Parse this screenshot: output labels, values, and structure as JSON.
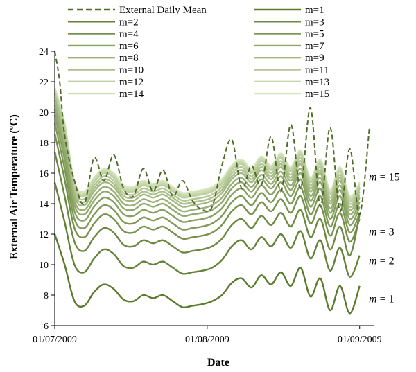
{
  "chart_data": {
    "type": "line",
    "title": "",
    "xlabel": "Date",
    "ylabel": "External Air Temperature (ºC)",
    "ylim": [
      6,
      24
    ],
    "yticks": [
      6,
      8,
      10,
      12,
      14,
      16,
      18,
      20,
      22,
      24
    ],
    "xlim": [
      "01/07/2009",
      "04/09/2009"
    ],
    "xticks": [
      "01/07/2009",
      "01/08/2009",
      "01/09/2009"
    ],
    "grid": false,
    "legend_position": "top",
    "external_mean": {
      "name": "External Daily Mean",
      "style": "dashed",
      "color": "#4f6b28",
      "dates": [
        "01/07/2009",
        "02/07/2009",
        "03/07/2009",
        "05/07/2009",
        "07/07/2009",
        "09/07/2009",
        "11/07/2009",
        "13/07/2009",
        "15/07/2009",
        "17/07/2009",
        "19/07/2009",
        "21/07/2009",
        "23/07/2009",
        "25/07/2009",
        "27/07/2009",
        "29/07/2009",
        "31/07/2009",
        "02/08/2009",
        "04/08/2009",
        "06/08/2009",
        "08/08/2009",
        "10/08/2009",
        "12/08/2009",
        "14/08/2009",
        "16/08/2009",
        "18/08/2009",
        "20/08/2009",
        "22/08/2009",
        "24/08/2009",
        "26/08/2009",
        "28/08/2009",
        "30/08/2009",
        "01/09/2009",
        "03/09/2009"
      ],
      "values": [
        24,
        22,
        18.5,
        15.5,
        14,
        17,
        15.5,
        17.2,
        15,
        14.5,
        16.3,
        14.8,
        16.2,
        14.5,
        15.5,
        14.2,
        13.6,
        13.8,
        16.5,
        18.2,
        15,
        16.5,
        15.2,
        18.4,
        14.8,
        19.2,
        15,
        20.3,
        13.8,
        19,
        13.5,
        17.6,
        13.3,
        19
      ]
    },
    "series": [
      {
        "name": "m=1",
        "values": [
          12.0,
          10.0,
          7.6,
          7.3,
          8.2,
          8.7,
          8.4,
          7.7,
          7.6,
          8.0,
          7.8,
          8.0,
          7.6,
          7.2,
          7.3,
          7.4,
          7.6,
          8.0,
          8.8,
          9.1,
          8.5,
          9.3,
          8.7,
          9.5,
          8.6,
          9.8,
          7.9,
          9.1,
          7.0,
          8.6,
          6.8,
          8.6
        ]
      },
      {
        "name": "m=2",
        "values": [
          15.4,
          12.8,
          10.0,
          9.5,
          10.4,
          11.0,
          10.7,
          9.9,
          9.8,
          10.2,
          10.0,
          10.2,
          9.8,
          9.4,
          9.5,
          9.6,
          9.8,
          10.3,
          11.2,
          11.6,
          11.0,
          11.8,
          11.2,
          12.0,
          11.1,
          12.2,
          10.4,
          11.6,
          9.6,
          11.1,
          9.2,
          10.6
        ]
      },
      {
        "name": "m=3",
        "values": [
          17.4,
          14.5,
          11.5,
          10.9,
          11.8,
          12.4,
          12.1,
          11.3,
          11.2,
          11.6,
          11.4,
          11.6,
          11.2,
          10.8,
          10.9,
          11.0,
          11.2,
          11.7,
          12.6,
          13.0,
          12.4,
          13.2,
          12.6,
          13.4,
          12.5,
          13.6,
          11.8,
          13.0,
          11.0,
          12.5,
          10.6,
          13.3
        ]
      },
      {
        "name": "m=4",
        "values": [
          18.6,
          15.6,
          12.4,
          11.8,
          12.7,
          13.3,
          13.0,
          12.2,
          12.1,
          12.5,
          12.3,
          12.5,
          12.1,
          11.7,
          11.8,
          11.9,
          12.1,
          12.6,
          13.5,
          13.9,
          13.3,
          14.1,
          13.5,
          14.3,
          13.4,
          14.5,
          12.7,
          13.9,
          11.9,
          13.4,
          11.5,
          13.0
        ]
      },
      {
        "name": "m=5",
        "values": [
          19.3,
          16.3,
          13.0,
          12.4,
          13.3,
          13.9,
          13.6,
          12.8,
          12.7,
          13.1,
          12.9,
          13.1,
          12.7,
          12.3,
          12.4,
          12.5,
          12.7,
          13.2,
          14.1,
          14.5,
          13.9,
          14.7,
          14.1,
          14.9,
          14.0,
          15.1,
          13.3,
          14.5,
          12.5,
          14.0,
          12.1,
          13.4
        ]
      },
      {
        "name": "m=6",
        "values": [
          19.8,
          16.9,
          13.5,
          12.9,
          13.8,
          14.4,
          14.1,
          13.3,
          13.2,
          13.6,
          13.4,
          13.6,
          13.2,
          12.8,
          12.9,
          13.0,
          13.2,
          13.7,
          14.6,
          15.0,
          14.4,
          15.2,
          14.6,
          15.4,
          14.5,
          15.6,
          13.8,
          15.0,
          13.0,
          14.5,
          12.6,
          13.8
        ]
      },
      {
        "name": "m=7",
        "values": [
          20.2,
          17.4,
          13.9,
          13.3,
          14.2,
          14.8,
          14.5,
          13.7,
          13.6,
          14.0,
          13.8,
          14.0,
          13.6,
          13.2,
          13.3,
          13.4,
          13.6,
          14.1,
          15.0,
          15.4,
          14.8,
          15.6,
          15.0,
          15.8,
          14.9,
          16.0,
          14.2,
          15.4,
          13.4,
          14.9,
          13.0,
          14.1
        ]
      },
      {
        "name": "m=8",
        "values": [
          20.5,
          17.8,
          14.2,
          13.6,
          14.5,
          15.1,
          14.8,
          14.0,
          13.9,
          14.3,
          14.1,
          14.3,
          13.9,
          13.5,
          13.6,
          13.7,
          13.9,
          14.4,
          15.3,
          15.7,
          15.1,
          15.9,
          15.3,
          16.1,
          15.2,
          16.3,
          14.5,
          15.7,
          13.7,
          15.2,
          13.3,
          14.4
        ]
      },
      {
        "name": "m=9",
        "values": [
          20.8,
          18.1,
          14.5,
          13.9,
          14.8,
          15.4,
          15.1,
          14.3,
          14.2,
          14.6,
          14.4,
          14.6,
          14.2,
          13.8,
          13.9,
          14.0,
          14.2,
          14.7,
          15.6,
          16.0,
          15.4,
          16.2,
          15.6,
          16.4,
          15.5,
          16.6,
          14.8,
          16.0,
          14.0,
          15.5,
          13.6,
          14.6
        ]
      },
      {
        "name": "m=10",
        "values": [
          21.0,
          18.4,
          14.7,
          14.1,
          15.0,
          15.6,
          15.3,
          14.5,
          14.4,
          14.8,
          14.6,
          14.8,
          14.4,
          14.0,
          14.1,
          14.2,
          14.4,
          14.9,
          15.8,
          16.2,
          15.6,
          16.4,
          15.8,
          16.6,
          15.7,
          16.8,
          15.0,
          16.2,
          14.2,
          15.7,
          13.8,
          14.8
        ]
      },
      {
        "name": "m=11",
        "values": [
          21.2,
          18.7,
          14.9,
          14.3,
          15.2,
          15.8,
          15.5,
          14.7,
          14.6,
          15.0,
          14.8,
          15.0,
          14.6,
          14.2,
          14.3,
          14.4,
          14.6,
          15.1,
          16.0,
          16.4,
          15.8,
          16.6,
          16.0,
          16.8,
          15.9,
          17.0,
          15.2,
          16.4,
          14.4,
          15.9,
          14.0,
          15.0
        ]
      },
      {
        "name": "m=12",
        "values": [
          21.3,
          18.9,
          15.1,
          14.5,
          15.4,
          16.0,
          15.7,
          14.9,
          14.8,
          15.2,
          15.0,
          15.2,
          14.8,
          14.4,
          14.5,
          14.6,
          14.8,
          15.3,
          16.2,
          16.6,
          16.0,
          16.8,
          16.2,
          17.0,
          16.1,
          17.2,
          15.4,
          16.6,
          14.6,
          16.1,
          14.2,
          15.1
        ]
      },
      {
        "name": "m=13",
        "values": [
          21.4,
          19.1,
          15.2,
          14.6,
          15.5,
          16.1,
          15.8,
          15.0,
          14.9,
          15.3,
          15.1,
          15.3,
          14.9,
          14.5,
          14.6,
          14.7,
          14.9,
          15.4,
          16.3,
          16.7,
          16.1,
          16.9,
          16.3,
          17.1,
          16.2,
          17.3,
          15.5,
          16.7,
          14.7,
          16.2,
          14.3,
          15.2
        ]
      },
      {
        "name": "m=14",
        "values": [
          21.5,
          19.2,
          15.3,
          14.7,
          15.6,
          16.2,
          15.9,
          15.1,
          15.0,
          15.4,
          15.2,
          15.4,
          15.0,
          14.6,
          14.7,
          14.8,
          15.0,
          15.5,
          16.4,
          16.8,
          16.2,
          17.0,
          16.4,
          17.2,
          16.3,
          17.4,
          15.6,
          16.8,
          14.8,
          16.3,
          14.4,
          15.3
        ]
      },
      {
        "name": "m=15",
        "values": [
          21.6,
          19.3,
          15.4,
          14.8,
          15.7,
          16.3,
          16.0,
          15.2,
          15.1,
          15.5,
          15.3,
          15.5,
          15.1,
          14.7,
          14.8,
          14.9,
          15.1,
          15.6,
          16.5,
          16.9,
          16.3,
          17.1,
          16.5,
          17.3,
          16.4,
          17.5,
          15.7,
          16.9,
          14.9,
          16.4,
          14.5,
          15.4
        ]
      }
    ],
    "series_dates": [
      "01/07/2009",
      "03/07/2009",
      "05/07/2009",
      "07/07/2009",
      "09/07/2009",
      "11/07/2009",
      "13/07/2009",
      "15/07/2009",
      "17/07/2009",
      "19/07/2009",
      "21/07/2009",
      "23/07/2009",
      "25/07/2009",
      "27/07/2009",
      "29/07/2009",
      "31/07/2009",
      "02/08/2009",
      "04/08/2009",
      "06/08/2009",
      "08/08/2009",
      "10/08/2009",
      "12/08/2009",
      "14/08/2009",
      "16/08/2009",
      "18/08/2009",
      "20/08/2009",
      "22/08/2009",
      "24/08/2009",
      "26/08/2009",
      "28/08/2009",
      "30/08/2009",
      "01/09/2009"
    ],
    "colors": {
      "dark": "#5a7a2c",
      "light": "#d8e6bf",
      "axis": "#000000"
    },
    "annotations": [
      {
        "italic": "m",
        "text": " = 15",
        "y": 15.8
      },
      {
        "italic": "m",
        "text": " = 3",
        "y": 12.2
      },
      {
        "italic": "m",
        "text": " = 2",
        "y": 10.3
      },
      {
        "italic": "m",
        "text": " = 1",
        "y": 7.8
      }
    ]
  }
}
